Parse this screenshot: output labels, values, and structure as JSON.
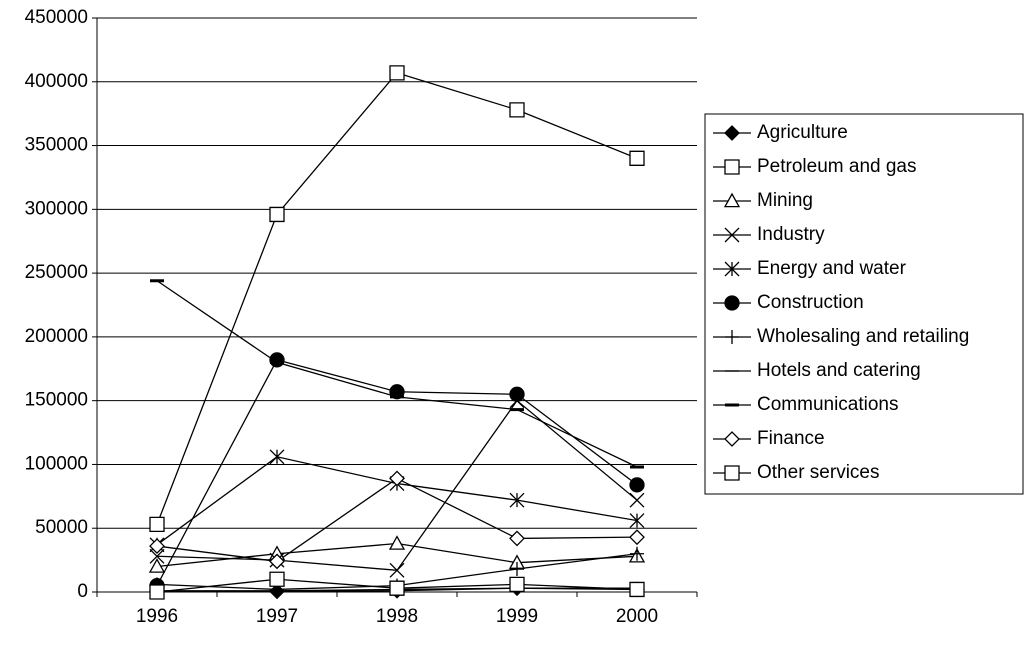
{
  "chart_data": {
    "type": "line",
    "categories": [
      "1996",
      "1997",
      "1998",
      "1999",
      "2000"
    ],
    "ylim": [
      0,
      450000
    ],
    "yticks": [
      0,
      50000,
      100000,
      150000,
      200000,
      250000,
      300000,
      350000,
      400000,
      450000
    ],
    "grid": true,
    "legend": "right",
    "series": [
      {
        "name": "Agriculture",
        "color": "#000000",
        "marker": "diamond-filled",
        "values": [
          500,
          500,
          1000,
          3000,
          2000
        ]
      },
      {
        "name": "Petroleum and gas",
        "color": "#000000",
        "marker": "square",
        "values": [
          53000,
          296000,
          407000,
          378000,
          340000
        ]
      },
      {
        "name": "Mining",
        "color": "#000000",
        "marker": "triangle",
        "values": [
          20000,
          30000,
          38000,
          23000,
          28000
        ]
      },
      {
        "name": "Industry",
        "color": "#000000",
        "marker": "x",
        "values": [
          28000,
          25000,
          17000,
          150000,
          72000
        ]
      },
      {
        "name": "Energy and water",
        "color": "#000000",
        "marker": "star",
        "values": [
          37000,
          106000,
          85000,
          72000,
          56000
        ]
      },
      {
        "name": "Construction",
        "color": "#000000",
        "marker": "circle-filled",
        "values": [
          5000,
          182000,
          157000,
          155000,
          84000
        ]
      },
      {
        "name": "Wholesaling and retailing",
        "color": "#000000",
        "marker": "plus",
        "values": [
          6000,
          2000,
          5000,
          18000,
          30000
        ]
      },
      {
        "name": "Hotels and catering",
        "color": "#000000",
        "marker": "dash",
        "values": [
          1000,
          1000,
          2000,
          3000,
          3000
        ]
      },
      {
        "name": "Communications",
        "color": "#000000",
        "marker": "dash-thick",
        "values": [
          244000,
          180000,
          153000,
          143000,
          98000
        ]
      },
      {
        "name": "Finance",
        "color": "#000000",
        "marker": "diamond",
        "values": [
          36000,
          24000,
          89000,
          42000,
          43000
        ]
      },
      {
        "name": "Other services",
        "color": "#000000",
        "marker": "square",
        "values": [
          0,
          10000,
          3000,
          6000,
          2000
        ]
      }
    ]
  }
}
